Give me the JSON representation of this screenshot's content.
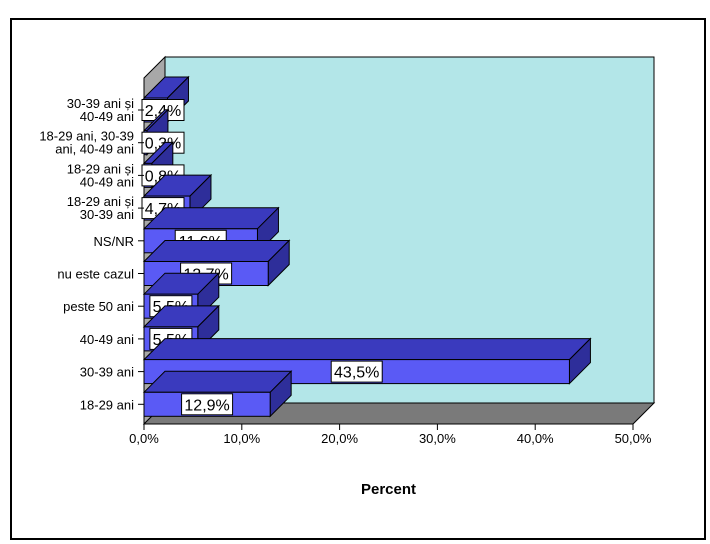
{
  "header": {
    "title": ""
  },
  "chart_data": {
    "type": "bar",
    "orientation": "horizontal",
    "style": "3d",
    "categories": [
      "30-39 ani și 40-49 ani",
      "18-29 ani, 30-39 ani, 40-49 ani",
      "18-29 ani și 40-49 ani",
      "18-29 ani și 30-39 ani",
      "NS/NR",
      "nu este cazul",
      "peste 50 ani",
      "40-49 ani",
      "30-39 ani",
      "18-29 ani"
    ],
    "values": [
      2.4,
      0.3,
      0.8,
      4.7,
      11.6,
      12.7,
      5.5,
      5.5,
      43.5,
      12.9
    ],
    "data_labels": [
      "2,4%",
      "0,3%",
      "0,8%",
      "4,7%",
      "11,6%",
      "12,7%",
      "5,5%",
      "5,5%",
      "43,5%",
      "12,9%"
    ],
    "xlabel": "Percent",
    "xlim": [
      0,
      50
    ],
    "xticks": [
      "0,0%",
      "10,0%",
      "20,0%",
      "30,0%",
      "40,0%",
      "50,0%"
    ],
    "colors": {
      "bar_front": "#5A5AF5",
      "bar_top": "#3A3ABE",
      "bar_side": "#2E2E9A",
      "back_wall": "#B3E6E8",
      "floor": "#7A7A7A",
      "left_wall": "#A8A8A8"
    }
  }
}
